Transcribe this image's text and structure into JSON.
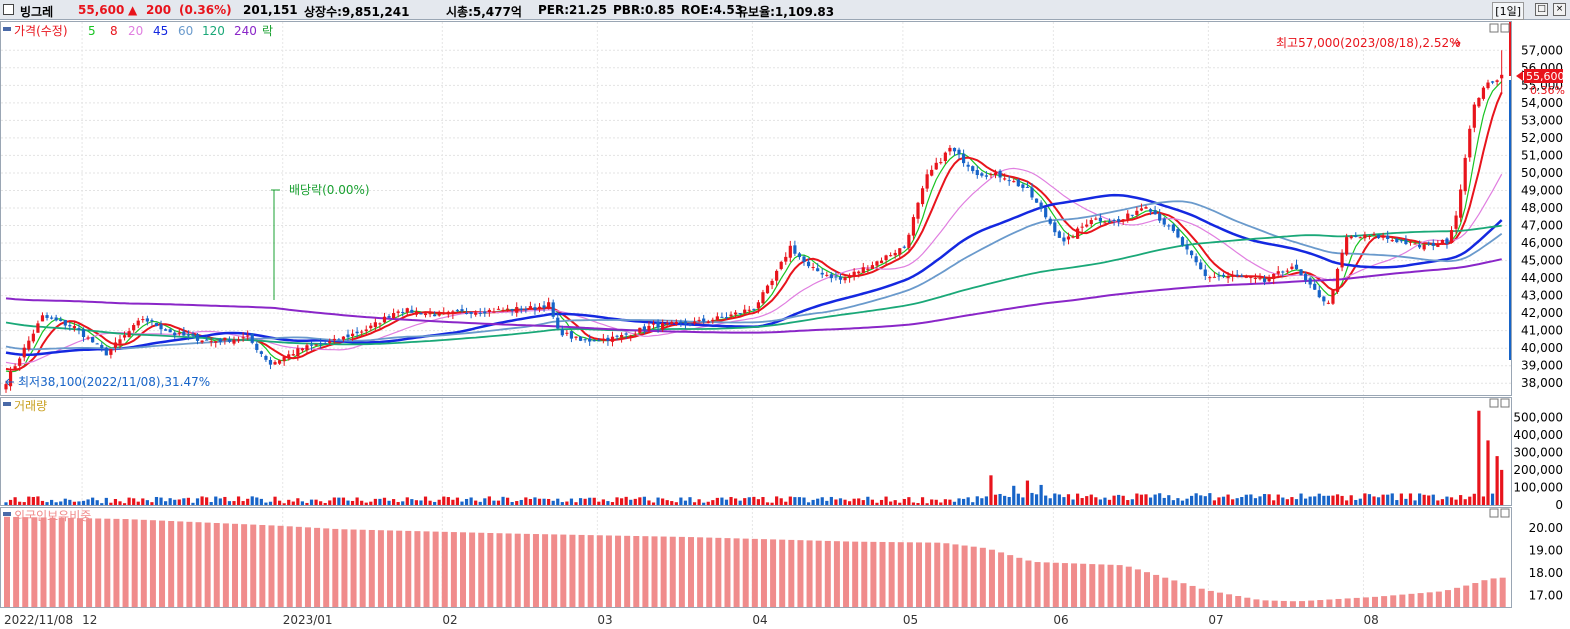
{
  "header": {
    "name": "빙그레",
    "price": "55,600",
    "change_arrow": "▲",
    "change": "200",
    "change_pct": "(0.36%)",
    "volume": "201,151",
    "listed": "상장수:9,851,241",
    "mcap": "시총:5,477억",
    "per": "PER:21.25",
    "pbr": "PBR:0.85",
    "roe": "ROE:4.53",
    "reserve": "유보율:1,109.83",
    "period": "[1일]"
  },
  "legend": {
    "price": "가격(수정)",
    "ma5": "5",
    "ma8": "8",
    "ma20": "20",
    "ma45": "45",
    "ma60": "60",
    "ma120": "120",
    "ma240": "240",
    "ex": "락"
  },
  "annotations": {
    "high": "최고57,000(2023/08/18),2.52%",
    "low": "최저38,100(2022/11/08),31.47%",
    "dividend": "배당락(0.00%)",
    "current_tag": "55,600",
    "current_pct": "0.36%"
  },
  "panels": {
    "volume_title": "거래량",
    "foreign_title": "외국인보유비중"
  },
  "colors": {
    "up": "#e8141c",
    "down": "#1764c8",
    "ma5": "#19c423",
    "ma8": "#e8141c",
    "ma20": "#e07ee0",
    "ma45": "#1428e0",
    "ma60": "#6a9acc",
    "ma120": "#1aa878",
    "ma240": "#8a26c8",
    "foreign": "#f08c8c"
  },
  "chart_data": [
    {
      "type": "candlestick",
      "title": "가격(수정)",
      "y_ticks": [
        "57,000",
        "56,000",
        "55,000",
        "54,000",
        "53,000",
        "52,000",
        "51,000",
        "50,000",
        "49,000",
        "48,000",
        "47,000",
        "46,000",
        "45,000",
        "44,000",
        "43,000",
        "42,000",
        "41,000",
        "40,000",
        "39,000",
        "38,000"
      ],
      "ylim": [
        37500,
        58500
      ],
      "x_ticks": [
        "2022/11/08",
        "12",
        "2023/01",
        "02",
        "03",
        "04",
        "05",
        "06",
        "07",
        "08"
      ],
      "anchors": [
        [
          0,
          38100
        ],
        [
          3,
          39500
        ],
        [
          8,
          41800
        ],
        [
          15,
          41200
        ],
        [
          22,
          39700
        ],
        [
          30,
          41700
        ],
        [
          37,
          40800
        ],
        [
          45,
          40400
        ],
        [
          53,
          40600
        ],
        [
          58,
          39100
        ],
        [
          65,
          40000
        ],
        [
          72,
          40400
        ],
        [
          80,
          41200
        ],
        [
          86,
          42200
        ],
        [
          95,
          41900
        ],
        [
          102,
          42100
        ],
        [
          110,
          42200
        ],
        [
          116,
          42300
        ],
        [
          119,
          42500
        ],
        [
          121,
          41000
        ],
        [
          126,
          40400
        ],
        [
          134,
          40600
        ],
        [
          142,
          41300
        ],
        [
          150,
          41400
        ],
        [
          158,
          41800
        ],
        [
          164,
          42300
        ],
        [
          168,
          43800
        ],
        [
          172,
          45800
        ],
        [
          176,
          44600
        ],
        [
          183,
          43900
        ],
        [
          190,
          44800
        ],
        [
          197,
          45800
        ],
        [
          202,
          49800
        ],
        [
          207,
          51400
        ],
        [
          213,
          50000
        ],
        [
          219,
          49800
        ],
        [
          224,
          49000
        ],
        [
          232,
          46000
        ],
        [
          238,
          47400
        ],
        [
          244,
          47200
        ],
        [
          250,
          48200
        ],
        [
          256,
          46600
        ],
        [
          263,
          44100
        ],
        [
          270,
          44100
        ],
        [
          276,
          43800
        ],
        [
          282,
          44700
        ],
        [
          286,
          43500
        ],
        [
          290,
          42500
        ],
        [
          294,
          46300
        ],
        [
          300,
          46400
        ],
        [
          306,
          46100
        ],
        [
          310,
          45800
        ],
        [
          316,
          46100
        ],
        [
          318,
          47600
        ],
        [
          322,
          54000
        ],
        [
          325,
          55100
        ],
        [
          327,
          55400
        ],
        [
          328,
          55600
        ]
      ],
      "last": {
        "open": 55400,
        "high": 57000,
        "low": 54500,
        "close": 55600
      },
      "moving_averages": [
        "5",
        "8",
        "20",
        "45",
        "60",
        "120",
        "240"
      ]
    },
    {
      "type": "bar",
      "title": "거래량",
      "y_ticks": [
        "500,000",
        "400,000",
        "300,000",
        "200,000",
        "100,000",
        "0"
      ],
      "ylim": [
        0,
        590000
      ],
      "spikes": [
        [
          216,
          170000
        ],
        [
          221,
          110000
        ],
        [
          224,
          140000
        ],
        [
          227,
          115000
        ],
        [
          323,
          540000
        ],
        [
          325,
          370000
        ],
        [
          327,
          280000
        ],
        [
          328,
          201151
        ]
      ]
    },
    {
      "type": "bar",
      "title": "외국인보유비중",
      "y_ticks": [
        "20.00",
        "19.00",
        "18.00",
        "17.00"
      ],
      "ylim": [
        16.5,
        20.8
      ],
      "levels": [
        [
          0,
          20.5
        ],
        [
          26,
          20.4
        ],
        [
          60,
          20.1
        ],
        [
          73,
          19.95
        ],
        [
          112,
          19.75
        ],
        [
          150,
          19.6
        ],
        [
          185,
          19.4
        ],
        [
          205,
          19.35
        ],
        [
          215,
          19.1
        ],
        [
          225,
          18.5
        ],
        [
          245,
          18.35
        ],
        [
          263,
          17.25
        ],
        [
          275,
          16.8
        ],
        [
          283,
          16.75
        ],
        [
          300,
          16.95
        ],
        [
          315,
          17.2
        ],
        [
          321,
          17.5
        ],
        [
          325,
          17.75
        ],
        [
          328,
          17.8
        ]
      ]
    }
  ]
}
